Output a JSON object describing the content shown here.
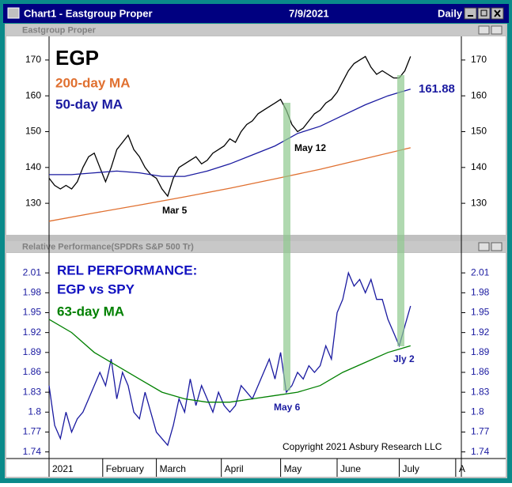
{
  "window": {
    "title": "Chart1 - Eastgroup Proper",
    "date": "7/9/2021",
    "period": "Daily"
  },
  "chart_data": [
    {
      "type": "line",
      "title": "Eastgroup Proper",
      "xlim": [
        0,
        146
      ],
      "ylim": [
        121.2,
        176.6
      ],
      "yticks": [
        130,
        140,
        150,
        160,
        170
      ],
      "annotations": [
        "Mar 5",
        "May 12"
      ],
      "series": [
        {
          "name": "EGP",
          "color": "#000000",
          "x": [
            0,
            2,
            4,
            6,
            8,
            10,
            12,
            14,
            16,
            18,
            20,
            22,
            24,
            26,
            28,
            30,
            32,
            34,
            36,
            38,
            40,
            42,
            44,
            46,
            48,
            50,
            52,
            54,
            56,
            58,
            60,
            62,
            64,
            66,
            68,
            70,
            72,
            74,
            76,
            78,
            80,
            82,
            84,
            86,
            88,
            90,
            92,
            94,
            96,
            98,
            100,
            102,
            104,
            106,
            108,
            110,
            112,
            114,
            116,
            118,
            120,
            122,
            124,
            126,
            128
          ],
          "values": [
            137,
            135,
            134,
            135,
            134,
            136,
            140,
            143,
            144,
            140,
            136,
            140,
            145,
            147,
            149,
            145,
            143,
            140,
            138,
            137,
            134,
            132,
            137,
            140,
            141,
            142,
            143,
            141,
            142,
            144,
            145,
            146,
            148,
            147,
            150,
            152,
            153,
            155,
            156,
            157,
            158,
            159,
            156,
            152,
            150,
            151,
            153,
            155,
            156,
            158,
            159,
            161,
            164,
            167,
            169,
            170,
            171,
            168,
            166,
            167,
            166,
            165,
            165,
            167,
            171
          ]
        },
        {
          "name": "200-day MA",
          "color": "#e07030",
          "x": [
            0,
            16,
            32,
            48,
            64,
            80,
            96,
            112,
            128
          ],
          "values": [
            125,
            127.3,
            129.5,
            131.8,
            134.2,
            136.8,
            139.5,
            142.5,
            145.5
          ]
        },
        {
          "name": "50-day MA",
          "color": "#1a1aa0",
          "x": [
            0,
            8,
            16,
            24,
            32,
            40,
            48,
            56,
            64,
            72,
            80,
            88,
            96,
            104,
            112,
            120,
            128
          ],
          "values": [
            138,
            138,
            138.5,
            139,
            138.5,
            137.5,
            137.5,
            139,
            141,
            143.5,
            146,
            149.5,
            151.5,
            154.5,
            157.5,
            160,
            161.88
          ]
        }
      ]
    },
    {
      "type": "line",
      "title": "Relative Performance(SPDRs S&P 500 Tr)",
      "xlim": [
        0,
        146
      ],
      "ylim": [
        1.73,
        2.04
      ],
      "yticks": [
        1.74,
        1.77,
        1.8,
        1.83,
        1.86,
        1.89,
        1.92,
        1.95,
        1.98,
        2.01
      ],
      "xticks": [
        {
          "value": 0,
          "label": "2021"
        },
        {
          "value": 19,
          "label": "February"
        },
        {
          "value": 38,
          "label": "March"
        },
        {
          "value": 61,
          "label": "April"
        },
        {
          "value": 82,
          "label": "May"
        },
        {
          "value": 102,
          "label": "June"
        },
        {
          "value": 124,
          "label": "July"
        },
        {
          "value": 144,
          "label": "A"
        }
      ],
      "annotations": [
        "REL PERFORMANCE:",
        "EGP vs SPY",
        "May 6",
        "Jly 2",
        "Copyright 2021 Asbury Research LLC"
      ],
      "series": [
        {
          "color": "#1a1aa0",
          "x": [
            0,
            2,
            4,
            6,
            8,
            10,
            12,
            14,
            16,
            18,
            20,
            22,
            24,
            26,
            28,
            30,
            32,
            34,
            36,
            38,
            40,
            42,
            44,
            46,
            48,
            50,
            52,
            54,
            56,
            58,
            60,
            62,
            64,
            66,
            68,
            70,
            72,
            74,
            76,
            78,
            80,
            82,
            84,
            86,
            88,
            90,
            92,
            94,
            96,
            98,
            100,
            102,
            104,
            106,
            108,
            110,
            112,
            114,
            116,
            118,
            120,
            122,
            124,
            126,
            128
          ],
          "values": [
            1.84,
            1.78,
            1.76,
            1.8,
            1.77,
            1.79,
            1.8,
            1.82,
            1.84,
            1.86,
            1.84,
            1.88,
            1.82,
            1.86,
            1.84,
            1.8,
            1.79,
            1.83,
            1.8,
            1.77,
            1.76,
            1.75,
            1.78,
            1.82,
            1.8,
            1.85,
            1.81,
            1.84,
            1.82,
            1.8,
            1.83,
            1.81,
            1.8,
            1.81,
            1.84,
            1.83,
            1.82,
            1.84,
            1.86,
            1.88,
            1.85,
            1.89,
            1.83,
            1.84,
            1.86,
            1.85,
            1.87,
            1.86,
            1.87,
            1.9,
            1.88,
            1.95,
            1.97,
            2.01,
            1.99,
            2,
            1.98,
            2,
            1.97,
            1.97,
            1.94,
            1.92,
            1.9,
            1.93,
            1.96
          ]
        },
        {
          "name": "63-day MA",
          "color": "#008000",
          "x": [
            0,
            8,
            16,
            24,
            32,
            40,
            48,
            56,
            64,
            72,
            80,
            88,
            96,
            104,
            112,
            120,
            128
          ],
          "values": [
            1.94,
            1.92,
            1.89,
            1.87,
            1.85,
            1.83,
            1.82,
            1.815,
            1.815,
            1.82,
            1.825,
            1.83,
            1.84,
            1.86,
            1.875,
            1.89,
            1.9
          ]
        }
      ]
    }
  ]
}
